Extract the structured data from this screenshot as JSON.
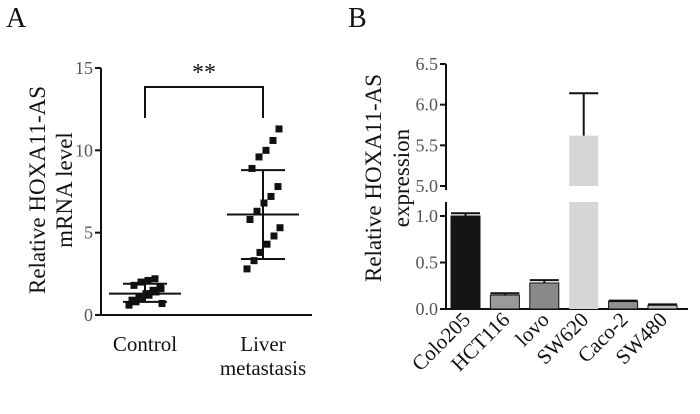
{
  "panels": {
    "a": "A",
    "b": "B"
  },
  "chart_data": [
    {
      "type": "scatter",
      "panel": "A",
      "ylabel_line1": "Relative HOXA11-AS",
      "ylabel_line2": "mRNA level",
      "ylim": [
        0,
        15
      ],
      "yticks": [
        "0",
        "5",
        "10",
        "15"
      ],
      "categories": [
        "Control",
        "Liver metastasis"
      ],
      "category_labels": [
        [
          "Control"
        ],
        [
          "Liver",
          "metastasis"
        ]
      ],
      "significance": "**",
      "series": [
        {
          "values": [
            0.6,
            0.8,
            1.0,
            1.2,
            1.4,
            0.7,
            0.9,
            1.1,
            1.3,
            1.5,
            1.7,
            1.8,
            2.0,
            2.1,
            2.2,
            1.6
          ],
          "mean": 1.3,
          "sd_low": 0.8,
          "sd_high": 1.9
        },
        {
          "values": [
            2.8,
            3.3,
            3.8,
            4.3,
            4.8,
            5.3,
            5.8,
            6.3,
            6.8,
            7.2,
            7.8,
            8.9,
            9.6,
            10.0,
            10.6,
            11.3
          ],
          "mean": 6.1,
          "sd_low": 3.4,
          "sd_high": 8.8
        }
      ],
      "colors": {
        "markers": "#111111"
      }
    },
    {
      "type": "bar",
      "panel": "B",
      "ylabel_line1": "Relative HOXA11-AS",
      "ylabel_line2": "expression",
      "axis_break": true,
      "ylim_lower": [
        0,
        1.0
      ],
      "yticks_lower": [
        "0.0",
        "0.5",
        "1.0"
      ],
      "ylim_upper": [
        5.0,
        6.5
      ],
      "yticks_upper": [
        "5.0",
        "5.5",
        "6.0",
        "6.5"
      ],
      "categories": [
        "Colo205",
        "HCT116",
        "lovo",
        "SW620",
        "Caco-2",
        "SW480"
      ],
      "values": [
        1.0,
        0.15,
        0.28,
        5.62,
        0.08,
        0.04
      ],
      "errors": [
        0.03,
        0.02,
        0.03,
        0.52,
        0.01,
        0.01
      ],
      "colors": [
        "#151515",
        "#9a9a9a",
        "#8a8a8a",
        "#d6d6d6",
        "#8f8f8f",
        "#bdbdbd"
      ]
    }
  ]
}
